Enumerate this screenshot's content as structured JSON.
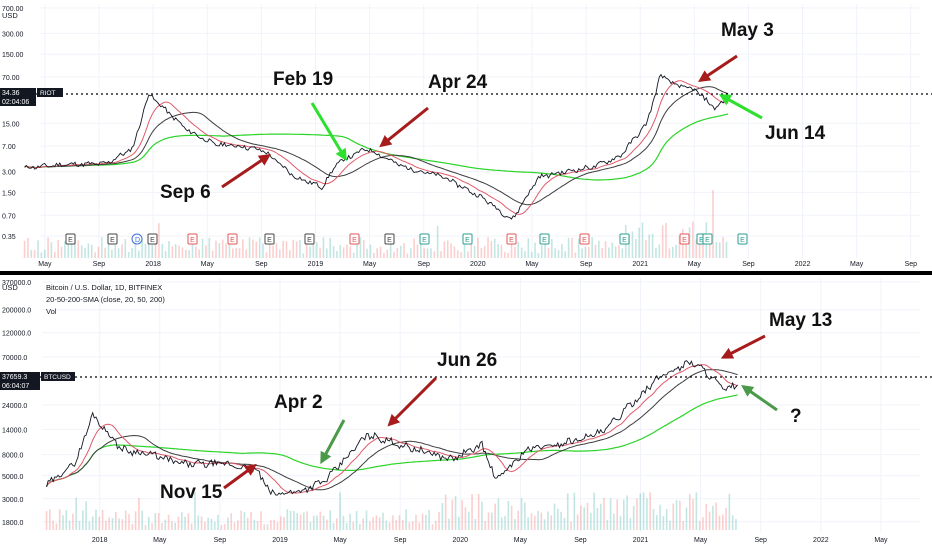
{
  "chart_data": [
    {
      "type": "line",
      "symbol": "RIOT",
      "currency": "USD",
      "scale": "log",
      "price_axis_ticks": [
        "700.00",
        "300.00",
        "150.00",
        "70.00",
        "34.36",
        "15.00",
        "7.00",
        "3.00",
        "1.50",
        "0.70",
        "0.35"
      ],
      "last_price": "34.36",
      "countdown": "02:04:06",
      "time_axis": [
        "May",
        "Sep",
        "2018",
        "May",
        "Sep",
        "2019",
        "May",
        "Sep",
        "2020",
        "May",
        "Sep",
        "2021",
        "May",
        "Sep",
        "2022",
        "May",
        "Sep"
      ],
      "sma_periods": [
        20,
        50,
        200
      ],
      "x": [
        "2017-03",
        "2017-06",
        "2017-09",
        "2017-11",
        "2017-12-20",
        "2018-03",
        "2018-05",
        "2018-07",
        "2018-09-06",
        "2018-11",
        "2019-01",
        "2019-02-19",
        "2019-04-24",
        "2019-07",
        "2019-10",
        "2020-01",
        "2020-03-16",
        "2020-05",
        "2020-07",
        "2020-09",
        "2020-11",
        "2021-01",
        "2021-02-15",
        "2021-03",
        "2021-05-03",
        "2021-06-14",
        "2021-07-15"
      ],
      "values": [
        3.4,
        3.8,
        3.9,
        6.5,
        40.0,
        12.0,
        7.5,
        7.0,
        6.0,
        2.5,
        1.8,
        4.0,
        6.5,
        3.5,
        2.5,
        1.2,
        0.6,
        2.5,
        3.0,
        3.5,
        5.0,
        15.0,
        75.0,
        55.0,
        45.0,
        25.0,
        34.36
      ],
      "events": [
        "E",
        "E",
        "D",
        "E",
        "E",
        "E",
        "E",
        "E",
        "E",
        "E",
        "E",
        "E",
        "E",
        "E",
        "E",
        "E",
        "E",
        "E",
        "E",
        "E",
        "E",
        "E"
      ],
      "annotations": [
        "Feb 19",
        "Apr 24",
        "Sep 6",
        "May 3",
        "Jun 14"
      ]
    },
    {
      "type": "line",
      "symbol": "BTCUSD",
      "currency": "USD",
      "scale": "log",
      "legend": [
        "Bitcoin / U.S. Dollar, 1D, BITFINEX",
        "20-50-200-SMA (close, 20, 50, 200)",
        "Vol"
      ],
      "price_axis_ticks": [
        "370000.0",
        "200000.0",
        "120000.0",
        "70000.0",
        "37659.3",
        "24000.0",
        "14000.0",
        "8000.0",
        "5000.0",
        "3000.0",
        "1800.0"
      ],
      "last_price": "37659.3",
      "countdown": "06:04:07",
      "time_axis": [
        "2018",
        "May",
        "Sep",
        "2019",
        "May",
        "Sep",
        "2020",
        "May",
        "Sep",
        "2021",
        "May",
        "Sep",
        "2022",
        "May"
      ],
      "sma_periods": [
        20,
        50,
        200
      ],
      "x": [
        "2017-09",
        "2017-11",
        "2017-12-17",
        "2018-02",
        "2018-04",
        "2018-06",
        "2018-09",
        "2018-11-15",
        "2018-12-15",
        "2019-02",
        "2019-04-02",
        "2019-06-26",
        "2019-09",
        "2019-12",
        "2020-02",
        "2020-03-12",
        "2020-05",
        "2020-07",
        "2020-10",
        "2021-01",
        "2021-02",
        "2021-04-13",
        "2021-05-13",
        "2021-06-20",
        "2021-07-15"
      ],
      "values": [
        4000,
        7000,
        19500,
        9000,
        8000,
        6500,
        6500,
        5600,
        3300,
        3600,
        4500,
        12500,
        9500,
        7200,
        10000,
        4500,
        9000,
        10000,
        13000,
        35000,
        47000,
        63000,
        50000,
        33000,
        37659.3
      ],
      "annotations": [
        "Nov 15",
        "Apr 2",
        "Jun 26",
        "May 13",
        "?"
      ]
    }
  ],
  "colors": {
    "candle_up": "#26a69a",
    "candle_down": "#ef5350",
    "price": "#131722",
    "sma20": "#e05a6a",
    "sma50": "#3d3d3d",
    "sma200": "#2bd428",
    "arrow_red": "#a61b1b",
    "arrow_green_bright": "#2ee02e",
    "arrow_green_dark": "#4a9a4a",
    "price_line": "#000000",
    "event_gray": "#444444",
    "event_red": "#e05555",
    "event_teal": "#2a9d8f",
    "event_blue": "#3b6fd8",
    "event_purple": "#b34fd6"
  }
}
